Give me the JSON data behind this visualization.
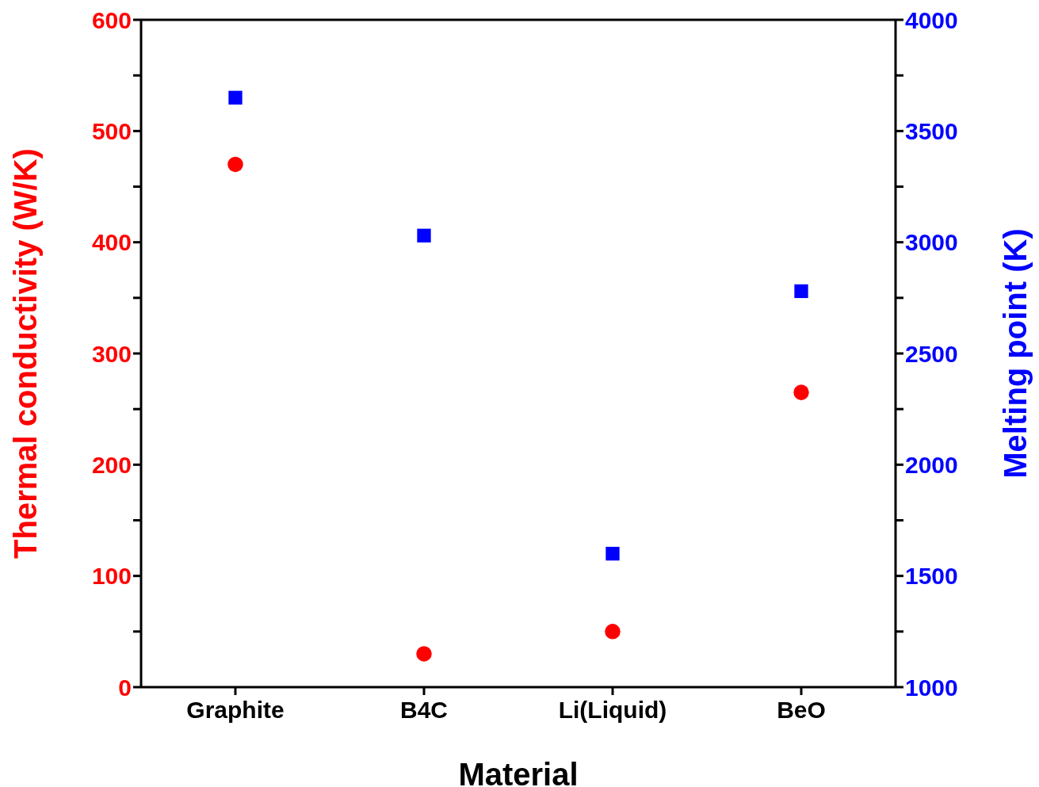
{
  "chart_data": {
    "type": "scatter",
    "xlabel": "Material",
    "ylabel": "Thermal conductivity (W/K)",
    "y2label": "Melting point (K)",
    "categories": [
      "Graphite",
      "B4C",
      "Li(Liquid)",
      "BeO"
    ],
    "series": [
      {
        "color": "#ff0000",
        "marker": "circle",
        "values": [
          470,
          30,
          50,
          265
        ]
      },
      {
        "color": "#0000ff",
        "marker": "square",
        "axis": "y2",
        "values": [
          3650,
          3030,
          1600,
          2780
        ]
      }
    ],
    "ylim": [
      0,
      600
    ],
    "yticks": [
      0,
      {
        "value": 50,
        "label": null
      },
      100,
      {
        "value": 150,
        "label": null
      },
      200,
      {
        "value": 250,
        "label": null
      },
      300,
      {
        "value": 350,
        "label": null
      },
      400,
      {
        "value": 450,
        "label": null
      },
      500,
      {
        "value": 550,
        "label": null
      },
      600
    ],
    "y2lim": [
      1000,
      4000
    ],
    "y2ticks": [
      1000,
      {
        "value": 1250,
        "label": null
      },
      1500,
      {
        "value": 1750,
        "label": null
      },
      2000,
      {
        "value": 2250,
        "label": null
      },
      2500,
      {
        "value": 2750,
        "label": null
      },
      3000,
      {
        "value": 3250,
        "label": null
      },
      3500,
      {
        "value": 3750,
        "label": null
      },
      4000
    ],
    "grid": false,
    "legend": false
  }
}
